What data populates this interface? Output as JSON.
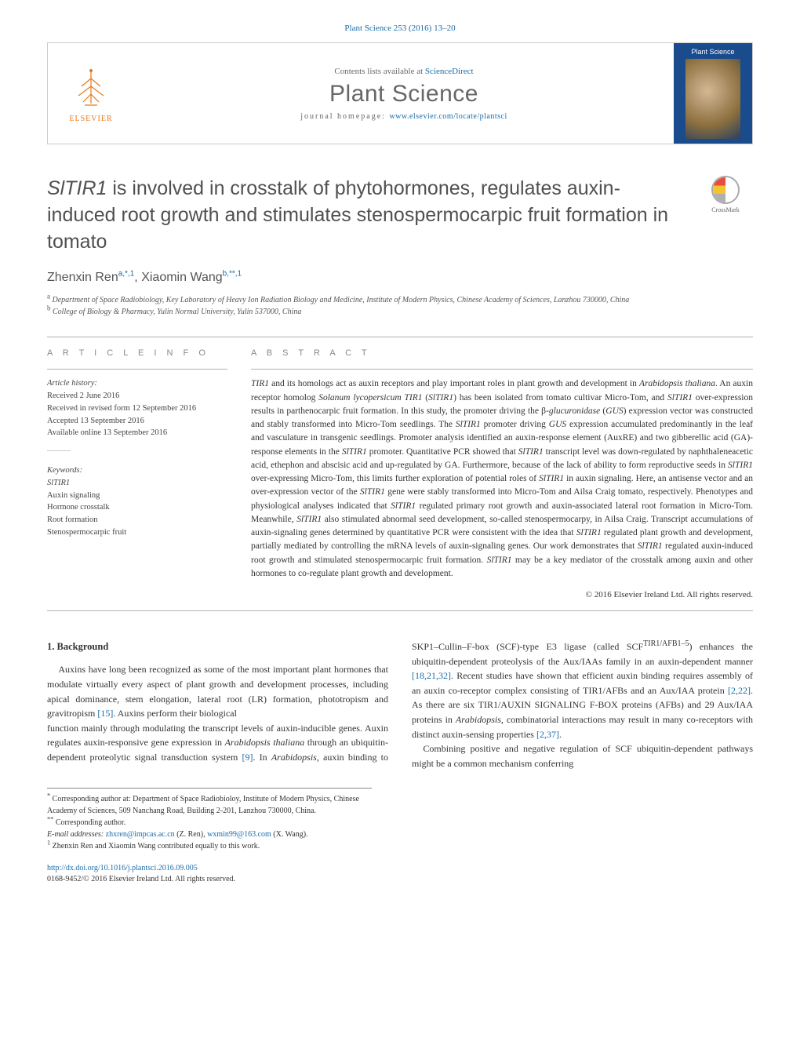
{
  "header": {
    "journal_ref": "Plant Science 253 (2016) 13–20",
    "contents_prefix": "Contents lists available at ",
    "contents_link": "ScienceDirect",
    "journal_name": "Plant Science",
    "homepage_prefix": "journal homepage: ",
    "homepage_url": "www.elsevier.com/locate/plantsci",
    "publisher_label": "ELSEVIER",
    "cover_title": "Plant Science",
    "crossmark_label": "CrossMark"
  },
  "article": {
    "title_html": "<em>SlTIR1</em> is involved in crosstalk of phytohormones, regulates auxin-induced root growth and stimulates stenospermocarpic fruit formation in tomato",
    "authors_html": "Zhenxin Ren<sup>a,*,1</sup>, Xiaomin Wang<sup>b,**,1</sup>",
    "affiliations": {
      "a": "Department of Space Radiobiology, Key Laboratory of Heavy Ion Radiation Biology and Medicine, Institute of Modern Physics, Chinese Academy of Sciences, Lanzhou 730000, China",
      "b": "College of Biology & Pharmacy, Yulin Normal University, Yulin 537000, China"
    }
  },
  "info": {
    "heading": "A R T I C L E   I N F O",
    "history_label": "Article history:",
    "received": "Received 2 June 2016",
    "revised": "Received in revised form 12 September 2016",
    "accepted": "Accepted 13 September 2016",
    "online": "Available online 13 September 2016",
    "keywords_label": "Keywords:",
    "keywords": [
      "SlTIR1",
      "Auxin signaling",
      "Hormone crosstalk",
      "Root formation",
      "Stenospermocarpic fruit"
    ]
  },
  "abstract": {
    "heading": "A B S T R A C T",
    "text_html": "<em>TIR1</em> and its homologs act as auxin receptors and play important roles in plant growth and development in <em>Arabidopsis thaliana</em>. An auxin receptor homolog <em>Solanum lycopersicum TIR1</em> (<em>SlTIR1</em>) has been isolated from tomato cultivar Micro-Tom, and <em>SlTIR1</em> over-expression results in parthenocarpic fruit formation. In this study, the promoter driving the β-<em>glucuronidase</em> (<em>GUS</em>) expression vector was constructed and stably transformed into Micro-Tom seedlings. The <em>SlTIR1</em> promoter driving <em>GUS</em> expression accumulated predominantly in the leaf and vasculature in transgenic seedlings. Promoter analysis identified an auxin-response element (AuxRE) and two gibberellic acid (GA)-response elements in the <em>SlTIR1</em> promoter. Quantitative PCR showed that <em>SlTIR1</em> transcript level was down-regulated by naphthaleneacetic acid, ethephon and abscisic acid and up-regulated by GA. Furthermore, because of the lack of ability to form reproductive seeds in <em>SlTIR1</em> over-expressing Micro-Tom, this limits further exploration of potential roles of <em>SlTIR1</em> in auxin signaling. Here, an antisense vector and an over-expression vector of the <em>SlTIR1</em> gene were stably transformed into Micro-Tom and Ailsa Craig tomato, respectively. Phenotypes and physiological analyses indicated that <em>SlTIR1</em> regulated primary root growth and auxin-associated lateral root formation in Micro-Tom. Meanwhile, <em>SlTIR1</em> also stimulated abnormal seed development, so-called stenospermocarpy, in Ailsa Craig. Transcript accumulations of auxin-signaling genes determined by quantitative PCR were consistent with the idea that <em>SlTIR1</em> regulated plant growth and development, partially mediated by controlling the mRNA levels of auxin-signaling genes. Our work demonstrates that <em>SlTIR1</em> regulated auxin-induced root growth and stimulated stenospermocarpic fruit formation. <em>SlTIR1</em> may be a key mediator of the crosstalk among auxin and other hormones to co-regulate plant growth and development.",
    "copyright": "© 2016 Elsevier Ireland Ltd. All rights reserved."
  },
  "body": {
    "heading": "1. Background",
    "p1_html": "Auxins have long been recognized as some of the most important plant hormones that modulate virtually every aspect of plant growth and development processes, including apical dominance, stem elongation, lateral root (LR) formation, phototropism and gravitropism <span class=\"ref-link\">[15]</span>. Auxins perform their biological",
    "p2_html": "function mainly through modulating the transcript levels of auxin-inducible genes. Auxin regulates auxin-responsive gene expression in <em>Arabidopsis thaliana</em> through an ubiquitin-dependent proteolytic signal transduction system <span class=\"ref-link\">[9]</span>. In <em>Arabidopsis</em>, auxin binding to SKP1–Cullin–F-box (SCF)-type E3 ligase (called SCF<sup>TIR1/AFB1–5</sup>) enhances the ubiquitin-dependent proteolysis of the Aux/IAAs family in an auxin-dependent manner <span class=\"ref-link\">[18,21,32]</span>. Recent studies have shown that efficient auxin binding requires assembly of an auxin co-receptor complex consisting of TIR1/AFBs and an Aux/IAA protein <span class=\"ref-link\">[2,22]</span>. As there are six TIR1/AUXIN SIGNALING F-BOX proteins (AFBs) and 29 Aux/IAA proteins in <em>Arabidopsis</em>, combinatorial interactions may result in many co-receptors with distinct auxin-sensing properties <span class=\"ref-link\">[2,37]</span>.",
    "p3_html": "Combining positive and negative regulation of SCF ubiquitin-dependent pathways might be a common mechanism conferring"
  },
  "footnotes": {
    "corr1": "Corresponding author at: Department of Space Radiobioloy, Institute of Modern Physics, Chinese Academy of Sciences, 509 Nanchang Road, Building 2-201, Lanzhou 730000, China.",
    "corr2": "Corresponding author.",
    "emails_label": "E-mail addresses:",
    "email1": "zhxren@impcas.ac.cn",
    "email1_who": " (Z. Ren), ",
    "email2": "wxmin99@163.com",
    "email2_who": " (X. Wang).",
    "contrib": "Zhenxin Ren and Xiaomin Wang contributed equally to this work."
  },
  "doi": {
    "url": "http://dx.doi.org/10.1016/j.plantsci.2016.09.005",
    "issn_line": "0168-9452/© 2016 Elsevier Ireland Ltd. All rights reserved."
  },
  "colors": {
    "link": "#1a6ca8",
    "publisher": "#e8791a",
    "heading_gray": "#888888",
    "text": "#333333",
    "rule": "#b0b0b0"
  }
}
